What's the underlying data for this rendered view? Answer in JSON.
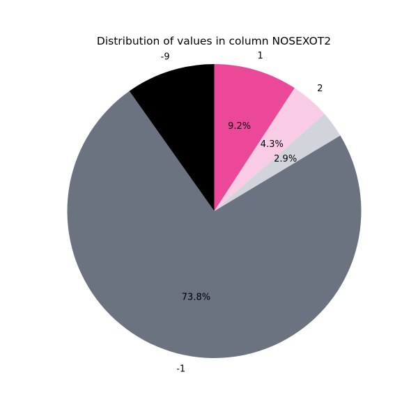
{
  "chart_data": {
    "type": "pie",
    "title": "Distribution of values in column NOSEXOT2",
    "start_angle_deg": 90,
    "direction": "counterclockwise",
    "slices": [
      {
        "label": "-9",
        "value": 9.8,
        "pct_label": "",
        "color": "#000000"
      },
      {
        "label": "-1",
        "value": 73.8,
        "pct_label": "73.8%",
        "color": "#6b7280"
      },
      {
        "label": "",
        "value": 2.9,
        "pct_label": "2.9%",
        "color": "#d1d5db"
      },
      {
        "label": "2",
        "value": 4.3,
        "pct_label": "4.3%",
        "color": "#f9cce6"
      },
      {
        "label": "1",
        "value": 9.2,
        "pct_label": "9.2%",
        "color": "#ec4899"
      }
    ]
  }
}
